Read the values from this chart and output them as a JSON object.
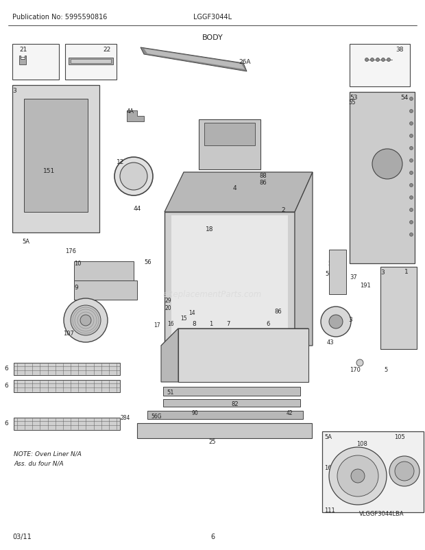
{
  "pub_no": "Publication No: 5995590816",
  "model": "LGGF3044L",
  "title": "BODY",
  "date": "03/11",
  "page": "6",
  "watermark": "eReplacementParts.com",
  "vlabel": "VLGGF3044LBA",
  "note_line1": "NOTE: Oven Liner N/A",
  "note_line2": "Ass. du four N/A",
  "bg_color": "#ffffff",
  "line_color": "#444444",
  "text_color": "#222222",
  "fig_width": 6.2,
  "fig_height": 8.03,
  "dpi": 100
}
